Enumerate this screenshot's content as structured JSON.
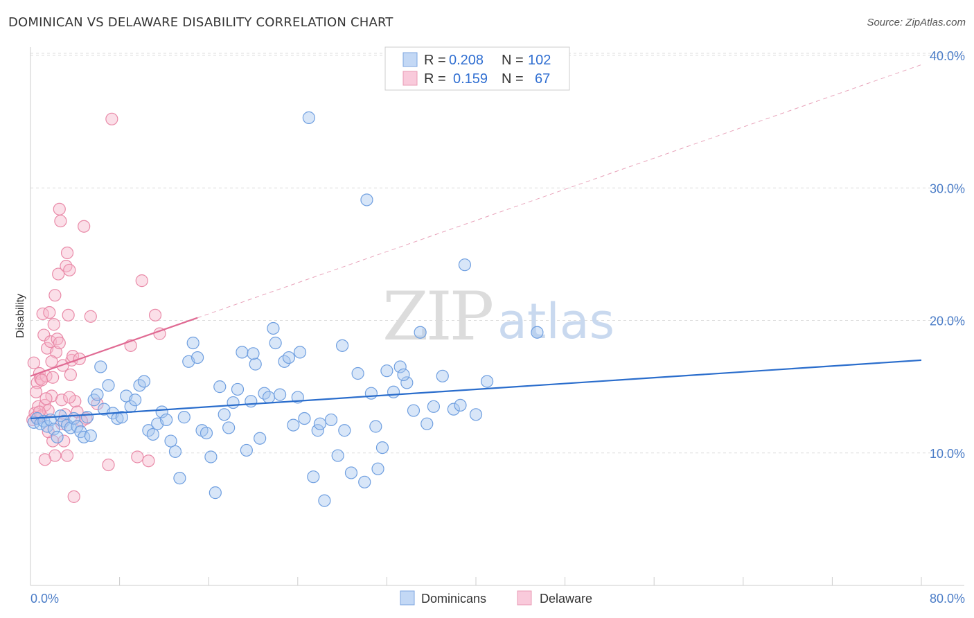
{
  "title": "DOMINICAN VS DELAWARE DISABILITY CORRELATION CHART",
  "source": "Source: ZipAtlas.com",
  "colors": {
    "blue_fill": "#a9c8f0",
    "blue_stroke": "#6f9fe0",
    "blue_line": "#2a6dcc",
    "pink_fill": "#f6b8cc",
    "pink_stroke": "#e98aa8",
    "pink_line": "#e06a93",
    "tick_text": "#4a7cc7",
    "grid": "#dddddd"
  },
  "legend_top": {
    "rows": [
      {
        "r_label": "R =",
        "r_value": "0.208",
        "n_label": "N =",
        "n_value": "102"
      },
      {
        "r_label": "R =",
        "r_value": "0.159",
        "n_label": "N =",
        "n_value": "67"
      }
    ]
  },
  "legend_bottom": {
    "items": [
      "Dominicans",
      "Delaware"
    ]
  },
  "watermark": {
    "zip": "ZIP",
    "atlas": "atlas"
  },
  "chart_data": {
    "type": "scatter",
    "title": "DOMINICAN VS DELAWARE DISABILITY CORRELATION CHART",
    "xlabel": "",
    "ylabel": "Disability",
    "xlim": [
      0,
      80
    ],
    "ylim": [
      0,
      40
    ],
    "x_tick_labels": [
      "0.0%",
      "80.0%"
    ],
    "y_ticks": [
      10,
      20,
      30,
      40
    ],
    "y_tick_labels": [
      "10.0%",
      "20.0%",
      "30.0%",
      "40.0%"
    ],
    "grid": true,
    "legend_placement": "top-center and bottom-center",
    "series": [
      {
        "name": "Dominicans",
        "r": 0.208,
        "n": 102,
        "trend": {
          "x": [
            0,
            80
          ],
          "y": [
            12.6,
            17.0
          ],
          "style": "solid"
        },
        "points": [
          [
            0.3,
            12.3
          ],
          [
            0.6,
            12.6
          ],
          [
            0.9,
            12.2
          ],
          [
            1.2,
            12.4
          ],
          [
            1.5,
            12.0
          ],
          [
            1.8,
            12.5
          ],
          [
            2.1,
            11.8
          ],
          [
            2.4,
            11.2
          ],
          [
            2.7,
            12.8
          ],
          [
            3.0,
            12.4
          ],
          [
            3.3,
            12.1
          ],
          [
            3.6,
            11.9
          ],
          [
            3.9,
            12.6
          ],
          [
            4.2,
            12.0
          ],
          [
            4.5,
            11.6
          ],
          [
            4.8,
            11.2
          ],
          [
            5.1,
            12.7
          ],
          [
            5.4,
            11.3
          ],
          [
            5.7,
            14.0
          ],
          [
            6.0,
            14.4
          ],
          [
            6.3,
            16.5
          ],
          [
            6.6,
            13.3
          ],
          [
            7.0,
            15.1
          ],
          [
            7.4,
            13.0
          ],
          [
            7.8,
            12.6
          ],
          [
            8.2,
            12.7
          ],
          [
            8.6,
            14.3
          ],
          [
            9.0,
            13.5
          ],
          [
            9.4,
            14.0
          ],
          [
            9.8,
            15.1
          ],
          [
            10.2,
            15.4
          ],
          [
            10.6,
            11.7
          ],
          [
            11.0,
            11.4
          ],
          [
            11.4,
            12.2
          ],
          [
            11.8,
            13.1
          ],
          [
            12.2,
            12.5
          ],
          [
            12.6,
            10.9
          ],
          [
            13.0,
            10.1
          ],
          [
            13.4,
            8.1
          ],
          [
            13.8,
            12.7
          ],
          [
            14.2,
            16.9
          ],
          [
            14.6,
            18.3
          ],
          [
            15.0,
            17.2
          ],
          [
            15.4,
            11.7
          ],
          [
            15.8,
            11.5
          ],
          [
            16.2,
            9.7
          ],
          [
            16.6,
            7.0
          ],
          [
            17.0,
            15.0
          ],
          [
            17.4,
            12.9
          ],
          [
            17.8,
            11.9
          ],
          [
            18.2,
            13.8
          ],
          [
            18.6,
            14.8
          ],
          [
            19.0,
            17.6
          ],
          [
            19.4,
            10.2
          ],
          [
            19.8,
            13.9
          ],
          [
            20.2,
            16.7
          ],
          [
            20.6,
            11.1
          ],
          [
            21.0,
            14.5
          ],
          [
            21.4,
            14.2
          ],
          [
            22.0,
            18.3
          ],
          [
            22.4,
            14.4
          ],
          [
            22.8,
            16.9
          ],
          [
            23.2,
            17.2
          ],
          [
            23.6,
            12.1
          ],
          [
            24.0,
            14.2
          ],
          [
            24.6,
            12.6
          ],
          [
            25.0,
            35.3
          ],
          [
            25.4,
            8.2
          ],
          [
            25.8,
            11.7
          ],
          [
            26.4,
            6.4
          ],
          [
            27.0,
            12.5
          ],
          [
            27.6,
            9.8
          ],
          [
            28.2,
            11.7
          ],
          [
            28.8,
            8.5
          ],
          [
            29.4,
            16.0
          ],
          [
            30.0,
            7.8
          ],
          [
            30.6,
            14.5
          ],
          [
            31.2,
            8.8
          ],
          [
            31.6,
            10.4
          ],
          [
            32.0,
            16.2
          ],
          [
            32.6,
            14.6
          ],
          [
            33.2,
            16.5
          ],
          [
            33.8,
            15.3
          ],
          [
            34.4,
            13.2
          ],
          [
            35.0,
            19.1
          ],
          [
            35.6,
            12.2
          ],
          [
            36.2,
            13.5
          ],
          [
            37.0,
            15.8
          ],
          [
            38.0,
            13.3
          ],
          [
            38.6,
            13.6
          ],
          [
            39.0,
            24.2
          ],
          [
            40.0,
            12.9
          ],
          [
            41.0,
            15.4
          ],
          [
            30.2,
            29.1
          ],
          [
            28.0,
            18.1
          ],
          [
            31.0,
            12.0
          ],
          [
            24.2,
            17.6
          ],
          [
            33.5,
            15.9
          ],
          [
            21.8,
            19.4
          ],
          [
            20.0,
            17.5
          ],
          [
            45.5,
            19.1
          ],
          [
            26.0,
            12.2
          ]
        ]
      },
      {
        "name": "Delaware",
        "r": 0.159,
        "n": 67,
        "trend": {
          "x": [
            0,
            15
          ],
          "y": [
            15.8,
            20.2
          ],
          "style": "solid",
          "extended": {
            "x": [
              15,
              80
            ],
            "y": [
              20.2,
              39.3
            ],
            "style": "dashed"
          }
        },
        "points": [
          [
            0.2,
            12.5
          ],
          [
            0.4,
            13.0
          ],
          [
            0.5,
            12.7
          ],
          [
            0.6,
            15.3
          ],
          [
            0.7,
            13.5
          ],
          [
            0.8,
            16.0
          ],
          [
            0.9,
            15.6
          ],
          [
            1.0,
            12.8
          ],
          [
            1.1,
            20.5
          ],
          [
            1.2,
            18.9
          ],
          [
            1.3,
            13.6
          ],
          [
            1.4,
            15.8
          ],
          [
            1.5,
            17.9
          ],
          [
            1.6,
            13.2
          ],
          [
            1.7,
            20.6
          ],
          [
            1.8,
            18.4
          ],
          [
            1.9,
            14.3
          ],
          [
            2.0,
            10.9
          ],
          [
            2.1,
            19.7
          ],
          [
            2.2,
            9.8
          ],
          [
            2.3,
            17.6
          ],
          [
            2.4,
            18.6
          ],
          [
            2.5,
            23.5
          ],
          [
            2.6,
            28.4
          ],
          [
            2.7,
            27.5
          ],
          [
            2.8,
            14.0
          ],
          [
            2.9,
            16.6
          ],
          [
            3.0,
            10.9
          ],
          [
            3.1,
            12.9
          ],
          [
            3.2,
            24.1
          ],
          [
            3.3,
            25.1
          ],
          [
            3.4,
            20.4
          ],
          [
            3.5,
            23.8
          ],
          [
            3.6,
            15.9
          ],
          [
            3.7,
            17.0
          ],
          [
            3.8,
            17.3
          ],
          [
            3.9,
            6.7
          ],
          [
            4.0,
            13.9
          ],
          [
            4.4,
            17.1
          ],
          [
            4.8,
            27.1
          ],
          [
            5.0,
            12.6
          ],
          [
            5.4,
            20.3
          ],
          [
            6.0,
            13.7
          ],
          [
            7.0,
            9.1
          ],
          [
            7.3,
            35.2
          ],
          [
            9.0,
            18.1
          ],
          [
            9.6,
            9.7
          ],
          [
            10.0,
            23.0
          ],
          [
            10.6,
            9.4
          ],
          [
            11.2,
            20.4
          ],
          [
            11.6,
            19.0
          ],
          [
            0.3,
            16.8
          ],
          [
            0.5,
            14.6
          ],
          [
            1.3,
            9.5
          ],
          [
            1.9,
            16.9
          ],
          [
            2.2,
            21.9
          ],
          [
            2.8,
            12.2
          ],
          [
            3.5,
            14.2
          ],
          [
            4.2,
            13.1
          ],
          [
            4.6,
            12.4
          ],
          [
            1.0,
            15.5
          ],
          [
            1.6,
            11.6
          ],
          [
            0.8,
            13.1
          ],
          [
            2.6,
            18.3
          ],
          [
            3.3,
            9.8
          ],
          [
            1.4,
            14.1
          ],
          [
            2.0,
            15.7
          ]
        ]
      }
    ]
  }
}
